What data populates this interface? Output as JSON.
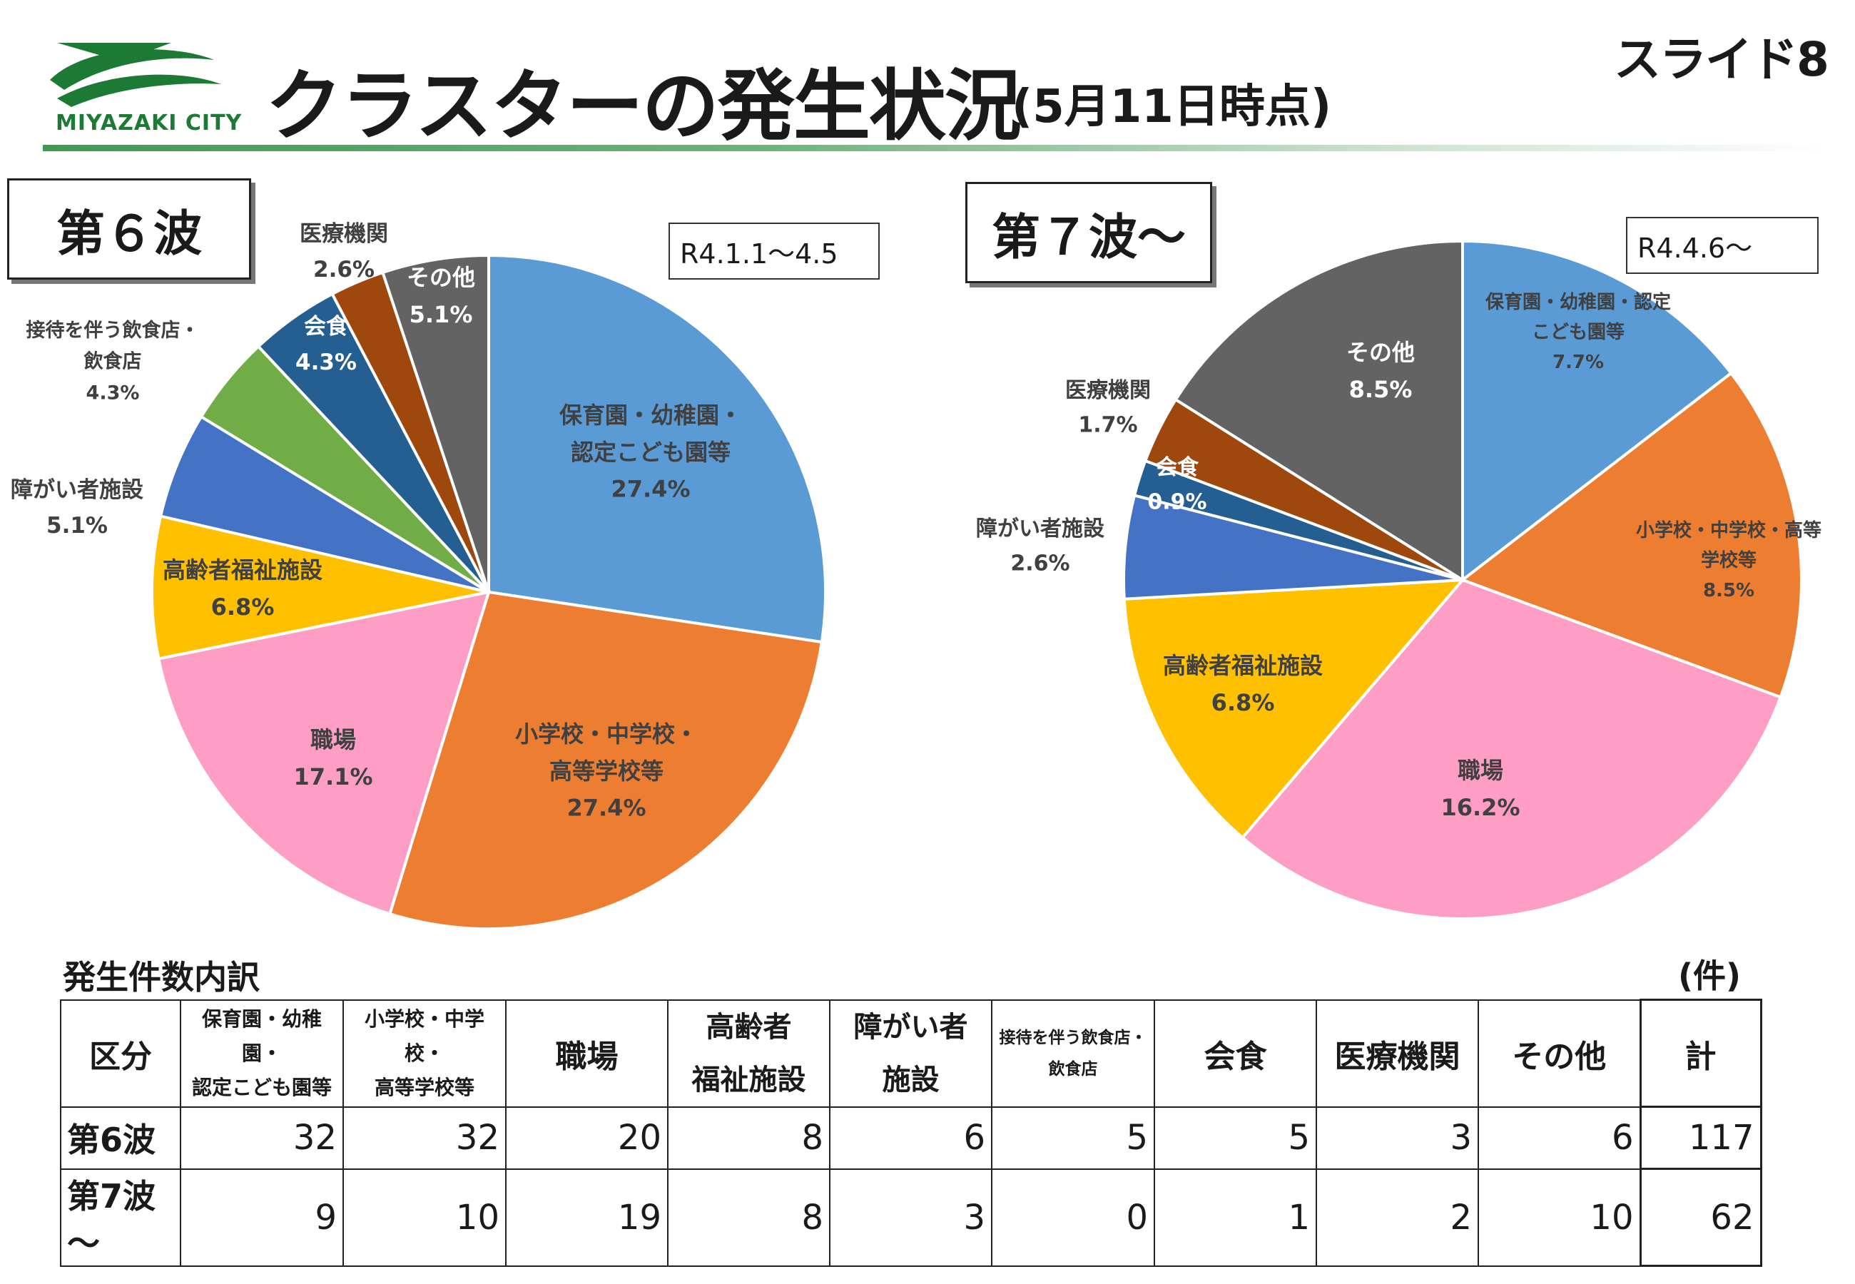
{
  "header": {
    "logo_text": "MIYAZAKI CITY",
    "title": "クラスターの発生状況",
    "subtitle": "(5月11日時点)",
    "slide_number": "スライド8"
  },
  "colors": {
    "blue": "#5b9bd5",
    "orange": "#ed7d31",
    "pink": "#ff9ec4",
    "yellow": "#ffc000",
    "royal_blue": "#4472c4",
    "green": "#70ad47",
    "navy": "#255e91",
    "brown": "#9e480e",
    "gray": "#636363",
    "logo_green": "#1c7a35"
  },
  "chart_data": [
    {
      "type": "pie",
      "title": "第６波",
      "period": "R4.1.1～4.5",
      "slices": [
        {
          "label": "保育園・幼稚園・認定こども園等",
          "label_lines": [
            "保育園・幼稚園・",
            "認定こども園等"
          ],
          "value": 27.4,
          "value_label": "27.4%",
          "color": "blue"
        },
        {
          "label": "小学校・中学校・高等学校等",
          "label_lines": [
            "小学校・中学校・",
            "高等学校等"
          ],
          "value": 27.4,
          "value_label": "27.4%",
          "color": "orange"
        },
        {
          "label": "職場",
          "label_lines": [
            "職場"
          ],
          "value": 17.1,
          "value_label": "17.1%",
          "color": "pink"
        },
        {
          "label": "高齢者福祉施設",
          "label_lines": [
            "高齢者福祉施設"
          ],
          "value": 6.8,
          "value_label": "6.8%",
          "color": "yellow"
        },
        {
          "label": "障がい者施設",
          "label_lines": [
            "障がい者施設"
          ],
          "value": 5.1,
          "value_label": "5.1%",
          "color": "royal_blue"
        },
        {
          "label": "接待を伴う飲食店・飲食店",
          "label_lines": [
            "接待を伴う飲食店・",
            "飲食店"
          ],
          "value": 4.3,
          "value_label": "4.3%",
          "color": "green"
        },
        {
          "label": "会食",
          "label_lines": [
            "会食"
          ],
          "value": 4.3,
          "value_label": "4.3%",
          "color": "navy"
        },
        {
          "label": "医療機関",
          "label_lines": [
            "医療機関"
          ],
          "value": 2.6,
          "value_label": "2.6%",
          "color": "brown"
        },
        {
          "label": "その他",
          "label_lines": [
            "その他"
          ],
          "value": 5.1,
          "value_label": "5.1%",
          "color": "gray"
        }
      ]
    },
    {
      "type": "pie",
      "title": "第７波～",
      "period": "R4.4.6～",
      "slices": [
        {
          "label": "保育園・幼稚園・認定こども園等",
          "label_lines": [
            "保育園・幼稚園・認定",
            "こども園等"
          ],
          "value": 7.7,
          "value_label": "7.7%",
          "color": "blue"
        },
        {
          "label": "小学校・中学校・高等学校等",
          "label_lines": [
            "小学校・中学校・高等",
            "学校等"
          ],
          "value": 8.5,
          "value_label": "8.5%",
          "color": "orange"
        },
        {
          "label": "職場",
          "label_lines": [
            "職場"
          ],
          "value": 16.2,
          "value_label": "16.2%",
          "color": "pink"
        },
        {
          "label": "高齢者福祉施設",
          "label_lines": [
            "高齢者福祉施設"
          ],
          "value": 6.8,
          "value_label": "6.8%",
          "color": "yellow"
        },
        {
          "label": "障がい者施設",
          "label_lines": [
            "障がい者施設"
          ],
          "value": 2.6,
          "value_label": "2.6%",
          "color": "royal_blue"
        },
        {
          "label": "会食",
          "label_lines": [
            "会食"
          ],
          "value": 0.9,
          "value_label": "0.9%",
          "color": "navy"
        },
        {
          "label": "医療機関",
          "label_lines": [
            "医療機関"
          ],
          "value": 1.7,
          "value_label": "1.7%",
          "color": "brown"
        },
        {
          "label": "その他",
          "label_lines": [
            "その他"
          ],
          "value": 8.5,
          "value_label": "8.5%",
          "color": "gray"
        }
      ]
    },
    {
      "type": "table",
      "title": "発生件数内訳",
      "unit": "(件)",
      "columns": [
        {
          "label": "区分",
          "lines": [
            "区分"
          ]
        },
        {
          "label": "保育園・幼稚園・認定こども園等",
          "lines": [
            "保育園・幼稚園・",
            "認定こども園等"
          ]
        },
        {
          "label": "小学校・中学校・高等学校等",
          "lines": [
            "小学校・中学校・",
            "高等学校等"
          ]
        },
        {
          "label": "職場",
          "lines": [
            "職場"
          ]
        },
        {
          "label": "高齢者福祉施設",
          "lines": [
            "高齢者",
            "福祉施設"
          ]
        },
        {
          "label": "障がい者施設",
          "lines": [
            "障がい者",
            "施設"
          ]
        },
        {
          "label": "接待を伴う飲食店・飲食店",
          "lines": [
            "接待を伴う飲食店・",
            "飲食店"
          ]
        },
        {
          "label": "会食",
          "lines": [
            "会食"
          ]
        },
        {
          "label": "医療機関",
          "lines": [
            "医療機関"
          ]
        },
        {
          "label": "その他",
          "lines": [
            "その他"
          ]
        },
        {
          "label": "計",
          "lines": [
            "計"
          ]
        }
      ],
      "rows": [
        {
          "label": "第6波",
          "values": [
            32,
            32,
            20,
            8,
            6,
            5,
            5,
            3,
            6,
            117
          ]
        },
        {
          "label": "第7波～",
          "values": [
            9,
            10,
            19,
            8,
            3,
            0,
            1,
            2,
            10,
            62
          ]
        }
      ]
    }
  ]
}
